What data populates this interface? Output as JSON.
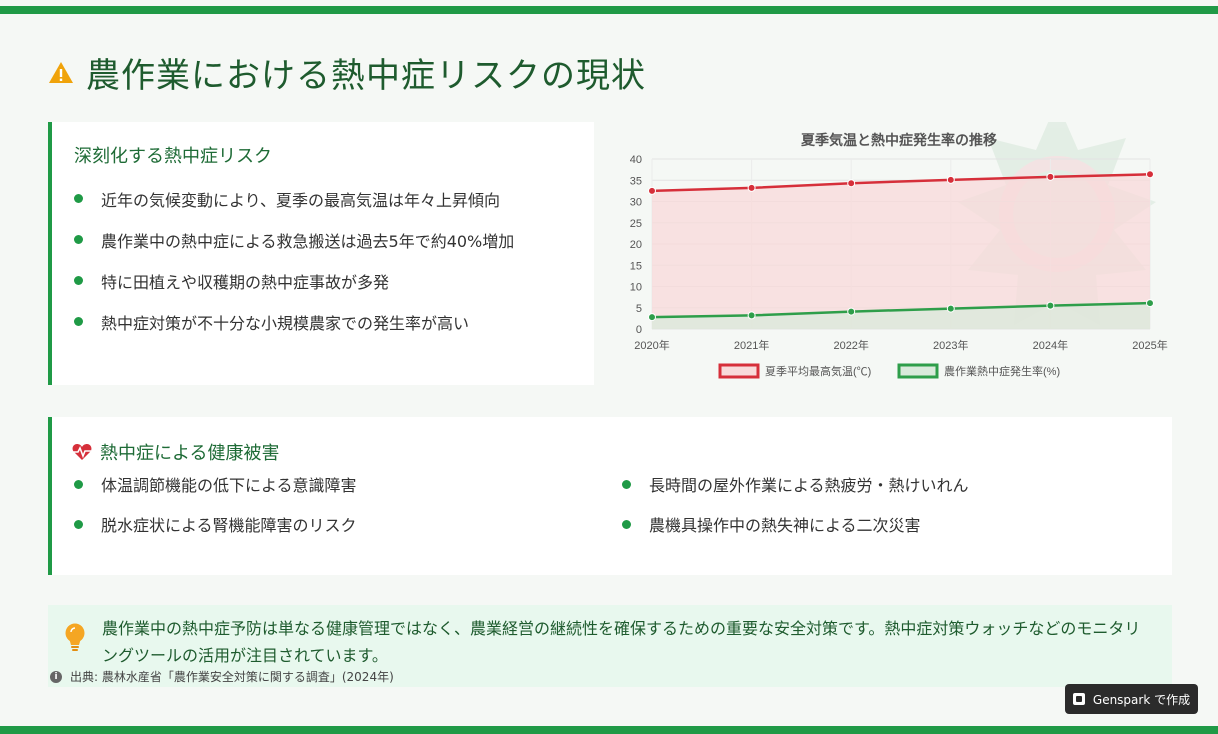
{
  "page": {
    "title": "農作業における熱中症リスクの現状"
  },
  "risk_card": {
    "heading": "深刻化する熱中症リスク",
    "items": [
      "近年の気候変動により、夏季の最高気温は年々上昇傾向",
      "農作業中の熱中症による救急搬送は過去5年で約40%増加",
      "特に田植えや収穫期の熱中症事故が多発",
      "熱中症対策が不十分な小規模農家での発生率が高い"
    ]
  },
  "health_card": {
    "heading": "熱中症による健康被害",
    "items": [
      "体温調節機能の低下による意識障害",
      "長時間の屋外作業による熱疲労・熱けいれん",
      "脱水症状による腎機能障害のリスク",
      "農機具操作中の熱失神による二次災害"
    ]
  },
  "note": {
    "text": "農作業中の熱中症予防は単なる健康管理ではなく、農業経営の継続性を確保するための重要な安全対策です。熱中症対策ウォッチなどのモニタリングツールの活用が注目されています。"
  },
  "source": {
    "text": "出典: 農林水産省「農作業安全対策に関する調査」(2024年)"
  },
  "badge": {
    "label": "Genspark で作成"
  },
  "colors": {
    "accent": "#1f9a46",
    "temp_line": "#d62f3a",
    "rate_line": "#2e9e4a",
    "warning": "#f0a30a",
    "heart": "#d62f3a"
  },
  "icons": {
    "title": "warning-icon",
    "health": "heartbeat-icon",
    "note": "lightbulb-icon",
    "source": "info-icon",
    "badge": "genspark-logo-icon"
  },
  "chart_data": {
    "type": "line",
    "title": "夏季気温と熱中症発生率の推移",
    "categories": [
      "2020年",
      "2021年",
      "2022年",
      "2023年",
      "2024年",
      "2025年"
    ],
    "ylim": [
      0,
      40
    ],
    "yticks": [
      0,
      5,
      10,
      15,
      20,
      25,
      30,
      35,
      40
    ],
    "grid": true,
    "legend_position": "bottom",
    "series": [
      {
        "name": "夏季平均最高気温(℃)",
        "values": [
          32.5,
          33.2,
          34.3,
          35.1,
          35.8,
          36.4
        ],
        "color": "#d62f3a",
        "fill": "#f8dada"
      },
      {
        "name": "農作業熱中症発生率(%)",
        "values": [
          2.8,
          3.2,
          4.1,
          4.8,
          5.5,
          6.1
        ],
        "color": "#2e9e4a",
        "fill": "#d9eadb"
      }
    ]
  }
}
